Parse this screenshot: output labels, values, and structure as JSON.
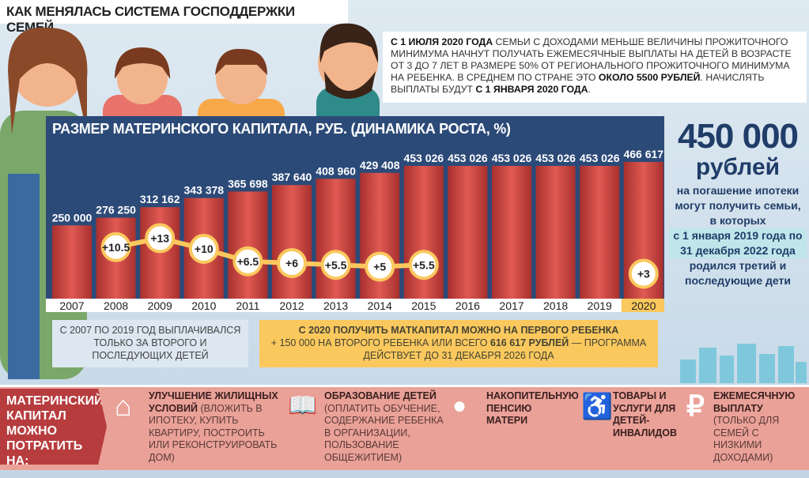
{
  "title": "КАК МЕНЯЛАСЬ СИСТЕМА ГОСПОДДЕРЖКИ СЕМЕЙ",
  "notice": {
    "b1": "С 1 ИЮЛЯ 2020 ГОДА",
    "t1": " СЕМЬИ С ДОХОДАМИ МЕНЬШЕ ВЕЛИЧИНЫ ПРОЖИТОЧНОГО МИНИМУМА НАЧНУТ ПОЛУЧАТЬ ЕЖЕМЕСЯЧНЫЕ ВЫПЛАТЫ НА ДЕТЕЙ В ВОЗРАСТЕ ОТ 3 ДО 7 ЛЕТ В РАЗМЕРЕ 50% ОТ РЕГИОНАЛЬНОГО ПРОЖИТОЧНОГО МИНИМУМА НА РЕБЕНКА. В СРЕДНЕМ ПО СТРАНЕ ЭТО ",
    "b2": "ОКОЛО 5500 РУБЛЕЙ",
    "t2": ". НАЧИСЛЯТЬ ВЫПЛАТЫ БУДУТ ",
    "b3": "С 1 ЯНВАРЯ 2020 ГОДА",
    "t3": "."
  },
  "chart_data": {
    "type": "bar",
    "title": "РАЗМЕР МАТЕРИНСКОГО КАПИТАЛА, РУБ. (ДИНАМИКА РОСТА, %)",
    "categories": [
      "2007",
      "2008",
      "2009",
      "2010",
      "2011",
      "2012",
      "2013",
      "2014",
      "2015",
      "2016",
      "2017",
      "2018",
      "2019",
      "2020"
    ],
    "values": [
      250000,
      276250,
      312162,
      343378,
      365698,
      387640,
      408960,
      429408,
      453026,
      453026,
      453026,
      453026,
      453026,
      466617
    ],
    "value_labels": [
      "250 000",
      "276 250",
      "312 162",
      "343 378",
      "365 698",
      "387 640",
      "408 960",
      "429 408",
      "453 026",
      "453 026",
      "453 026",
      "453 026",
      "453 026",
      "466 617"
    ],
    "growth_pct": [
      null,
      10.5,
      13,
      10,
      6.5,
      6,
      5.5,
      5,
      5.5,
      null,
      null,
      null,
      null,
      3
    ],
    "growth_labels": [
      "",
      "+10.5",
      "+13",
      "+10",
      "+6.5",
      "+6",
      "+5.5",
      "+5",
      "+5.5",
      "",
      "",
      "",
      "",
      "+3"
    ],
    "highlight": "2020",
    "colors": {
      "bar": "#c9433f",
      "panel": "#2c4a78",
      "growth": "#fbc85e"
    }
  },
  "note_left": "С 2007 ПО 2019 ГОД ВЫПЛАЧИВАЛСЯ ТОЛЬКО ЗА ВТОРОГО И ПОСЛЕДУЮЩИХ ДЕТЕЙ",
  "note_right": {
    "b1": "С 2020 ПОЛУЧИТЬ МАТКАПИТАЛ МОЖНО НА ПЕРВОГО РЕБЕНКА",
    "t1": "+ 150 000 НА ВТОРОГО РЕБЕНКА ИЛИ ВСЕГО ",
    "b2": "616 617 РУБЛЕЙ",
    "t2": " — ПРОГРАММА ДЕЙСТВУЕТ ДО 31 ДЕКАБРЯ 2026 ГОДА"
  },
  "right": {
    "amount": "450 000",
    "unit": "рублей",
    "l1": "на погашение ипотеки могут получить семьи, в которых",
    "hl": "с 1 января 2019 года по 31 декабря 2022 года",
    "l2": "родился третий и последующие дети"
  },
  "bottom": {
    "label": "МАТЕРИНСКИЙ КАПИТАЛ МОЖНО ПОТРАТИТЬ НА:",
    "items": [
      {
        "icon": "house-icon",
        "bold": "УЛУЧШЕНИЕ ЖИЛИЩНЫХ УСЛОВИЙ",
        "text": " (ВЛОЖИТЬ В ИПОТЕКУ, КУПИТЬ КВАРТИРУ, ПОСТРОИТЬ ИЛИ РЕКОНСТРУИРОВАТЬ ДОМ)"
      },
      {
        "icon": "book-icon",
        "bold": "ОБРАЗОВАНИЕ ДЕТЕЙ",
        "text": " (ОПЛАТИТЬ ОБУЧЕНИЕ, СОДЕРЖАНИЕ РЕБЕНКА В ОРГАНИЗАЦИИ, ПОЛЬЗОВАНИЕ ОБЩЕЖИТИЕМ)"
      },
      {
        "icon": "piggy-bank-icon",
        "bold": "НАКОПИТЕЛЬНУЮ ПЕНСИЮ МАТЕРИ",
        "text": ""
      },
      {
        "icon": "wheelchair-icon",
        "bold": "ТОВАРЫ И УСЛУГИ ДЛЯ ДЕТЕЙ-ИНВАЛИДОВ",
        "text": ""
      },
      {
        "icon": "ruble-icon",
        "bold": "ЕЖЕМЕСЯЧНУЮ ВЫПЛАТУ",
        "text": " (ТОЛЬКО ДЛЯ СЕМЕЙ С НИЗКИМИ ДОХОДАМИ)"
      }
    ]
  }
}
